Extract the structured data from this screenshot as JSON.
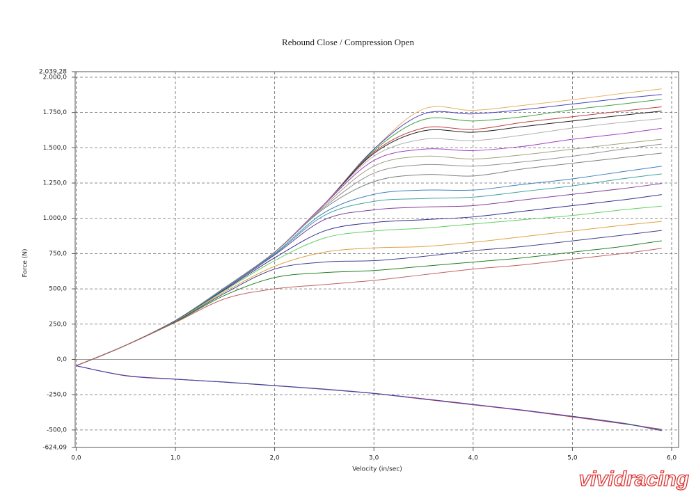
{
  "chart_data": {
    "type": "line",
    "title": "Rebound Close / Compression Open",
    "x_label": "Velocity (in/sec)",
    "y_label": "Force (N)",
    "watermark": "vividracing",
    "grid": true,
    "x": [
      0,
      0.5,
      1,
      1.5,
      2,
      2.5,
      3,
      3.5,
      4,
      4.5,
      5,
      5.5,
      5.9
    ],
    "xlim": [
      -0.01,
      6.07
    ],
    "ylim": [
      -624.09,
      2039.28
    ],
    "xticks": [
      {
        "value": 0,
        "label": "0,0"
      },
      {
        "value": 1,
        "label": "1,0"
      },
      {
        "value": 2,
        "label": "2,0"
      },
      {
        "value": 3,
        "label": "3,0"
      },
      {
        "value": 4,
        "label": "4,0"
      },
      {
        "value": 5,
        "label": "5,0"
      },
      {
        "value": 6,
        "label": "6,0"
      }
    ],
    "yticks": [
      {
        "value": -624.09,
        "label": "-624,09"
      },
      {
        "value": -500,
        "label": "-500,0"
      },
      {
        "value": -250,
        "label": "-250,0"
      },
      {
        "value": 0,
        "label": "0,0"
      },
      {
        "value": 250,
        "label": "250,0"
      },
      {
        "value": 500,
        "label": "500,0"
      },
      {
        "value": 750,
        "label": "750,0"
      },
      {
        "value": 1000,
        "label": "1.000,0"
      },
      {
        "value": 1250,
        "label": "1.250,0"
      },
      {
        "value": 1500,
        "label": "1.500,0"
      },
      {
        "value": 1750,
        "label": "1.750,0"
      },
      {
        "value": 2000,
        "label": "2.000,0"
      },
      {
        "value": 2039.28,
        "label": "2.039,28"
      }
    ],
    "series": [
      {
        "color": "#e8b060",
        "values": [
          -45,
          100,
          275,
          510,
          760,
          1100,
          1490,
          1775,
          1765,
          1800,
          1840,
          1885,
          1917
        ]
      },
      {
        "color": "#4040c0",
        "values": [
          -45,
          100,
          275,
          510,
          760,
          1100,
          1490,
          1740,
          1740,
          1770,
          1810,
          1850,
          1878
        ]
      },
      {
        "color": "#40a040",
        "values": [
          -45,
          100,
          275,
          510,
          760,
          1100,
          1480,
          1700,
          1690,
          1720,
          1770,
          1810,
          1843
        ]
      },
      {
        "color": "#c04040",
        "values": [
          -45,
          100,
          275,
          510,
          760,
          1100,
          1470,
          1640,
          1630,
          1680,
          1720,
          1760,
          1790
        ]
      },
      {
        "color": "#202020",
        "values": [
          -45,
          100,
          275,
          510,
          760,
          1100,
          1460,
          1620,
          1610,
          1650,
          1690,
          1730,
          1760
        ]
      },
      {
        "color": "#b0b0b0",
        "values": [
          -45,
          100,
          275,
          510,
          760,
          1100,
          1440,
          1560,
          1550,
          1590,
          1640,
          1680,
          1707
        ]
      },
      {
        "color": "#a040c0",
        "values": [
          -45,
          100,
          275,
          510,
          760,
          1100,
          1410,
          1490,
          1480,
          1510,
          1560,
          1600,
          1638
        ]
      },
      {
        "color": "#a0a080",
        "values": [
          -45,
          100,
          275,
          510,
          760,
          1090,
          1370,
          1440,
          1420,
          1450,
          1490,
          1530,
          1560
        ]
      },
      {
        "color": "#909090",
        "values": [
          -45,
          100,
          275,
          510,
          760,
          1080,
          1320,
          1380,
          1370,
          1400,
          1440,
          1490,
          1526
        ]
      },
      {
        "color": "#808080",
        "values": [
          -45,
          100,
          275,
          510,
          760,
          1070,
          1260,
          1310,
          1300,
          1350,
          1390,
          1430,
          1462
        ]
      },
      {
        "color": "#4080c0",
        "values": [
          -45,
          100,
          275,
          505,
          750,
          1040,
          1170,
          1200,
          1200,
          1240,
          1280,
          1330,
          1369
        ]
      },
      {
        "color": "#40a0a0",
        "values": [
          -45,
          100,
          275,
          505,
          745,
          1020,
          1120,
          1140,
          1150,
          1190,
          1230,
          1280,
          1315
        ]
      },
      {
        "color": "#8040a0",
        "values": [
          -45,
          100,
          275,
          500,
          740,
          990,
          1060,
          1080,
          1090,
          1130,
          1170,
          1210,
          1247
        ]
      },
      {
        "color": "#303090",
        "values": [
          -45,
          100,
          275,
          495,
          720,
          910,
          970,
          990,
          1010,
          1050,
          1090,
          1130,
          1168
        ]
      },
      {
        "color": "#60d060",
        "values": [
          -45,
          100,
          272,
          490,
          700,
          860,
          910,
          930,
          960,
          990,
          1020,
          1060,
          1086
        ]
      },
      {
        "color": "#e0a040",
        "values": [
          -45,
          100,
          270,
          480,
          660,
          760,
          790,
          800,
          830,
          870,
          910,
          950,
          978
        ]
      },
      {
        "color": "#404090",
        "values": [
          -45,
          100,
          268,
          470,
          640,
          690,
          700,
          730,
          770,
          800,
          840,
          880,
          914
        ]
      },
      {
        "color": "#208020",
        "values": [
          -45,
          100,
          265,
          455,
          580,
          615,
          630,
          660,
          690,
          720,
          760,
          800,
          841
        ]
      },
      {
        "color": "#c06060",
        "values": [
          -45,
          100,
          262,
          430,
          500,
          530,
          560,
          600,
          640,
          670,
          710,
          750,
          787
        ]
      },
      {
        "color": "#40a040",
        "values": [
          -45,
          -115,
          -140,
          -160,
          -185,
          -210,
          -240,
          -280,
          -320,
          -360,
          -405,
          -450,
          -500
        ]
      },
      {
        "color": "#c04040",
        "values": [
          -45,
          -114,
          -139,
          -162,
          -187,
          -212,
          -242,
          -282,
          -322,
          -362,
          -408,
          -455,
          -495
        ]
      },
      {
        "color": "#4040c0",
        "values": [
          -45,
          -116,
          -141,
          -161,
          -186,
          -211,
          -241,
          -279,
          -319,
          -359,
          -403,
          -452,
          -505
        ]
      }
    ]
  }
}
